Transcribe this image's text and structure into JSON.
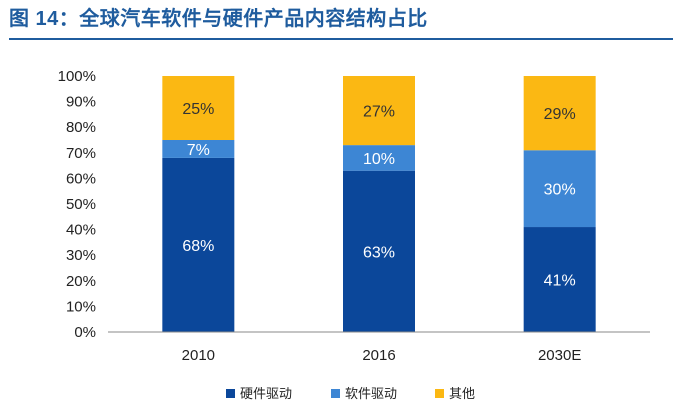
{
  "figure": {
    "title": "图 14：全球汽车软件与硬件产品内容结构占比"
  },
  "chart_data": {
    "type": "bar",
    "stacked": true,
    "categories": [
      "2010",
      "2016",
      "2030E"
    ],
    "series": [
      {
        "name": "硬件驱动",
        "values": [
          68,
          63,
          41
        ],
        "labels": [
          "68%",
          "63%",
          "41%"
        ],
        "color": "#0b479a"
      },
      {
        "name": "软件驱动",
        "values": [
          7,
          10,
          30
        ],
        "labels": [
          "7%",
          "10%",
          "30%"
        ],
        "color": "#3d86d4"
      },
      {
        "name": "其他",
        "values": [
          25,
          27,
          29
        ],
        "labels": [
          "25%",
          "27%",
          "29%"
        ],
        "color": "#fbb813"
      }
    ],
    "yticks": [
      "0%",
      "10%",
      "20%",
      "30%",
      "40%",
      "50%",
      "60%",
      "70%",
      "80%",
      "90%",
      "100%"
    ],
    "ylim": [
      0,
      100
    ],
    "legend_position": "bottom",
    "grid": false
  }
}
